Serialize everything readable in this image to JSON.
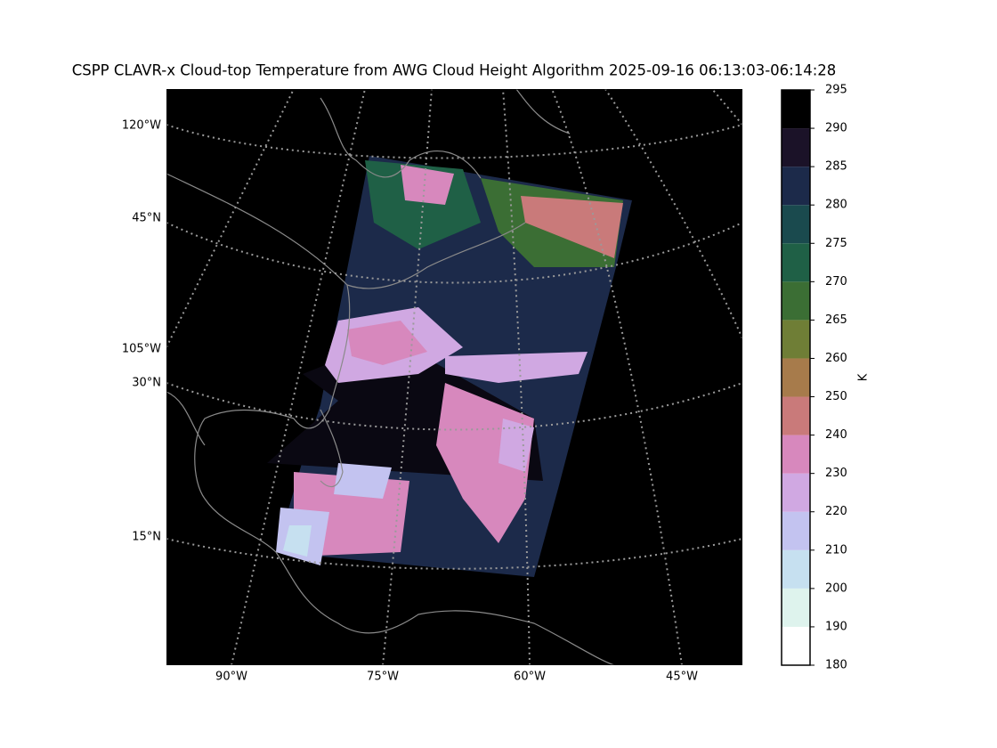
{
  "title": "CSPP CLAVR-x Cloud-top Temperature from AWG Cloud Height Algorithm 2025-09-16 06:13:03-06:14:28",
  "map": {
    "lon_labels": [
      "90°W",
      "75°W",
      "60°W",
      "45°W"
    ],
    "lat_labels": [
      "120°W",
      "45°N",
      "105°W",
      "30°N",
      "15°N"
    ]
  },
  "colorbar": {
    "label": "K",
    "bounds": [
      180,
      190,
      200,
      210,
      220,
      230,
      240,
      250,
      260,
      265,
      270,
      275,
      280,
      285,
      290,
      295
    ],
    "colors": [
      "#ffffff",
      "#def3ed",
      "#c6e0f0",
      "#c3c3f0",
      "#d0a8e2",
      "#d788bd",
      "#c97a7a",
      "#a77b4b",
      "#6f7e36",
      "#3b6e34",
      "#1f6046",
      "#1a4a4e",
      "#1c2a4a",
      "#1b1228",
      "#000000"
    ]
  }
}
